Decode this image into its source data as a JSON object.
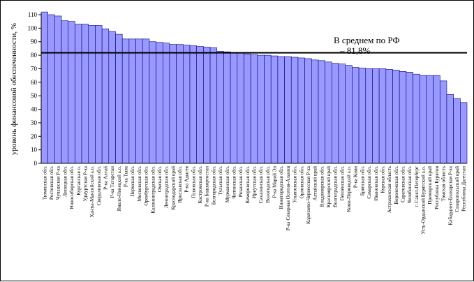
{
  "chart_data": {
    "type": "bar",
    "title": "",
    "xlabel": "",
    "ylabel": "уровень финансовой обеспеченности, %",
    "ylim": [
      0,
      110
    ],
    "yticks": [
      0,
      10,
      20,
      30,
      40,
      50,
      60,
      70,
      80,
      90,
      100,
      110
    ],
    "grid": false,
    "legend": "none",
    "colors": {
      "bar": "#9999ff",
      "bar_edge": "#000080",
      "average_line": "#000000"
    },
    "reference_line": {
      "value": 81.8,
      "label_line1": "В среднем по РФ",
      "label_line2": "– 81,8%"
    },
    "categories": [
      "Тюменская обл.",
      "Ростовская обл.",
      "Чувашская Р-ка",
      "Липецкая обл.",
      "Новосибирская обл.",
      "Курганская о.",
      "Удмуртская Р-ка",
      "Ханты-Мансийский а.о.",
      "Свердловская обл.",
      "Р-ка Алтай",
      "Р-ка Татарстан",
      "Ямало-Ненецкий а.о.",
      "Р-ка Тыва",
      "Пермская обл.",
      "Московская обл.",
      "Оренбургская обл.",
      "Калининградская обл.",
      "Омская обл.",
      "Ленинградская обл.",
      "Краснодарский край",
      "Ярославская обл.",
      "Р-ка Адыгея",
      "Псковская обл.",
      "Костромская обл.",
      "Р-ка Башкортостан",
      "Белгородская обл.",
      "Тульская обл.",
      "Мурманская обл.",
      "Читинская обл.",
      "Рязанская обл.",
      "Кемеровская обл.",
      "Иркутская обл.",
      "Сахалинская обл.",
      "Вологодская обл.",
      "Р-ка Марий Эл",
      "Нижегородская обл.",
      "Р-ка Северная Осетия-Алания",
      "Ульяновская обл.",
      "Орловская обл.",
      "Карачаево-Черкесская Р-ка",
      "Алтайский край",
      "Владимирская обл.",
      "Красноярский край",
      "Волгоградская обл.",
      "Пензенская обл.",
      "Коми-Пермяцкий а.о.",
      "Р-ка Коми",
      "Брянская обл.",
      "Самарская обл.",
      "Ивановская обл.",
      "Курская обл.",
      "Астраханская область",
      "Воронежская обл.",
      "Саратовская обл.",
      "Челябинская обл.",
      "г. Санкт-Петербург",
      "Усть-Ордынский Бурятский а.о.",
      "Приморский край",
      "Республика Бурятия",
      "Томская область",
      "Кабардино-Балкарская Р-ка",
      "Ставропольский край",
      "Республика Дагестан"
    ],
    "values": [
      112,
      110,
      109,
      105.5,
      105,
      103,
      103,
      102,
      102,
      99.5,
      97.5,
      95.5,
      92,
      92,
      92,
      92,
      90,
      89.5,
      89,
      88,
      88,
      87.5,
      87,
      86.5,
      86,
      85.5,
      83,
      82.5,
      82,
      81.5,
      81,
      80.5,
      80,
      80,
      79.5,
      79,
      79,
      78.5,
      78,
      77.5,
      76.5,
      76,
      75,
      74,
      73.5,
      72.5,
      71,
      70.5,
      70,
      70,
      70,
      69.5,
      69,
      68,
      67.5,
      66,
      65,
      65,
      65,
      61,
      51,
      48,
      45
    ]
  }
}
